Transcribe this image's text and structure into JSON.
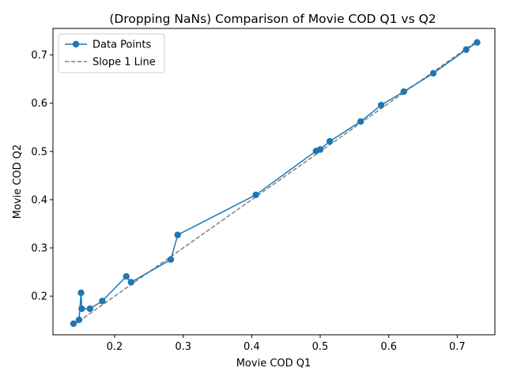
{
  "chart_data": {
    "type": "line",
    "title": "(Dropping NaNs) Comparison of Movie COD Q1 vs Q2",
    "xlabel": "Movie COD Q1",
    "ylabel": "Movie COD Q2",
    "xlim": [
      0.11,
      0.755
    ],
    "ylim": [
      0.12,
      0.755
    ],
    "xticks": [
      0.2,
      0.3,
      0.4,
      0.5,
      0.6,
      0.7
    ],
    "yticks": [
      0.2,
      0.3,
      0.4,
      0.5,
      0.6,
      0.7
    ],
    "x_tick_labels": [
      "0.2",
      "0.3",
      "0.4",
      "0.5",
      "0.6",
      "0.7"
    ],
    "y_tick_labels": [
      "0.2",
      "0.3",
      "0.4",
      "0.5",
      "0.6",
      "0.7"
    ],
    "grid": false,
    "legend_position": "top-left",
    "series": [
      {
        "name": "Data Points",
        "style": "solid line with circle markers",
        "color": "#1f77b4",
        "points": [
          [
            0.14,
            0.143
          ],
          [
            0.148,
            0.151
          ],
          [
            0.151,
            0.207
          ],
          [
            0.152,
            0.174
          ],
          [
            0.164,
            0.174
          ],
          [
            0.182,
            0.19
          ],
          [
            0.217,
            0.241
          ],
          [
            0.224,
            0.229
          ],
          [
            0.282,
            0.276
          ],
          [
            0.292,
            0.327
          ],
          [
            0.406,
            0.41
          ],
          [
            0.494,
            0.501
          ],
          [
            0.5,
            0.504
          ],
          [
            0.514,
            0.521
          ],
          [
            0.559,
            0.562
          ],
          [
            0.589,
            0.596
          ],
          [
            0.622,
            0.624
          ],
          [
            0.665,
            0.662
          ],
          [
            0.713,
            0.711
          ],
          [
            0.729,
            0.726
          ]
        ]
      },
      {
        "name": "Slope 1 Line",
        "style": "dashed",
        "color": "#808080",
        "points": [
          [
            0.14,
            0.14
          ],
          [
            0.729,
            0.729
          ]
        ]
      }
    ]
  }
}
